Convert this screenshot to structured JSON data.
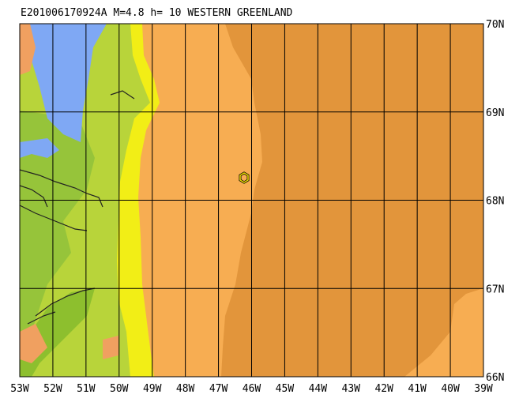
{
  "map": {
    "title": "E201006170924A M=4.8 h= 10 WESTERN GREENLAND",
    "lon_labels": [
      "53W",
      "52W",
      "51W",
      "50W",
      "49W",
      "48W",
      "47W",
      "46W",
      "45W",
      "44W",
      "43W",
      "42W",
      "41W",
      "40W",
      "39W"
    ],
    "lat_labels": [
      "70N",
      "69N",
      "68N",
      "67N",
      "66N"
    ]
  }
}
